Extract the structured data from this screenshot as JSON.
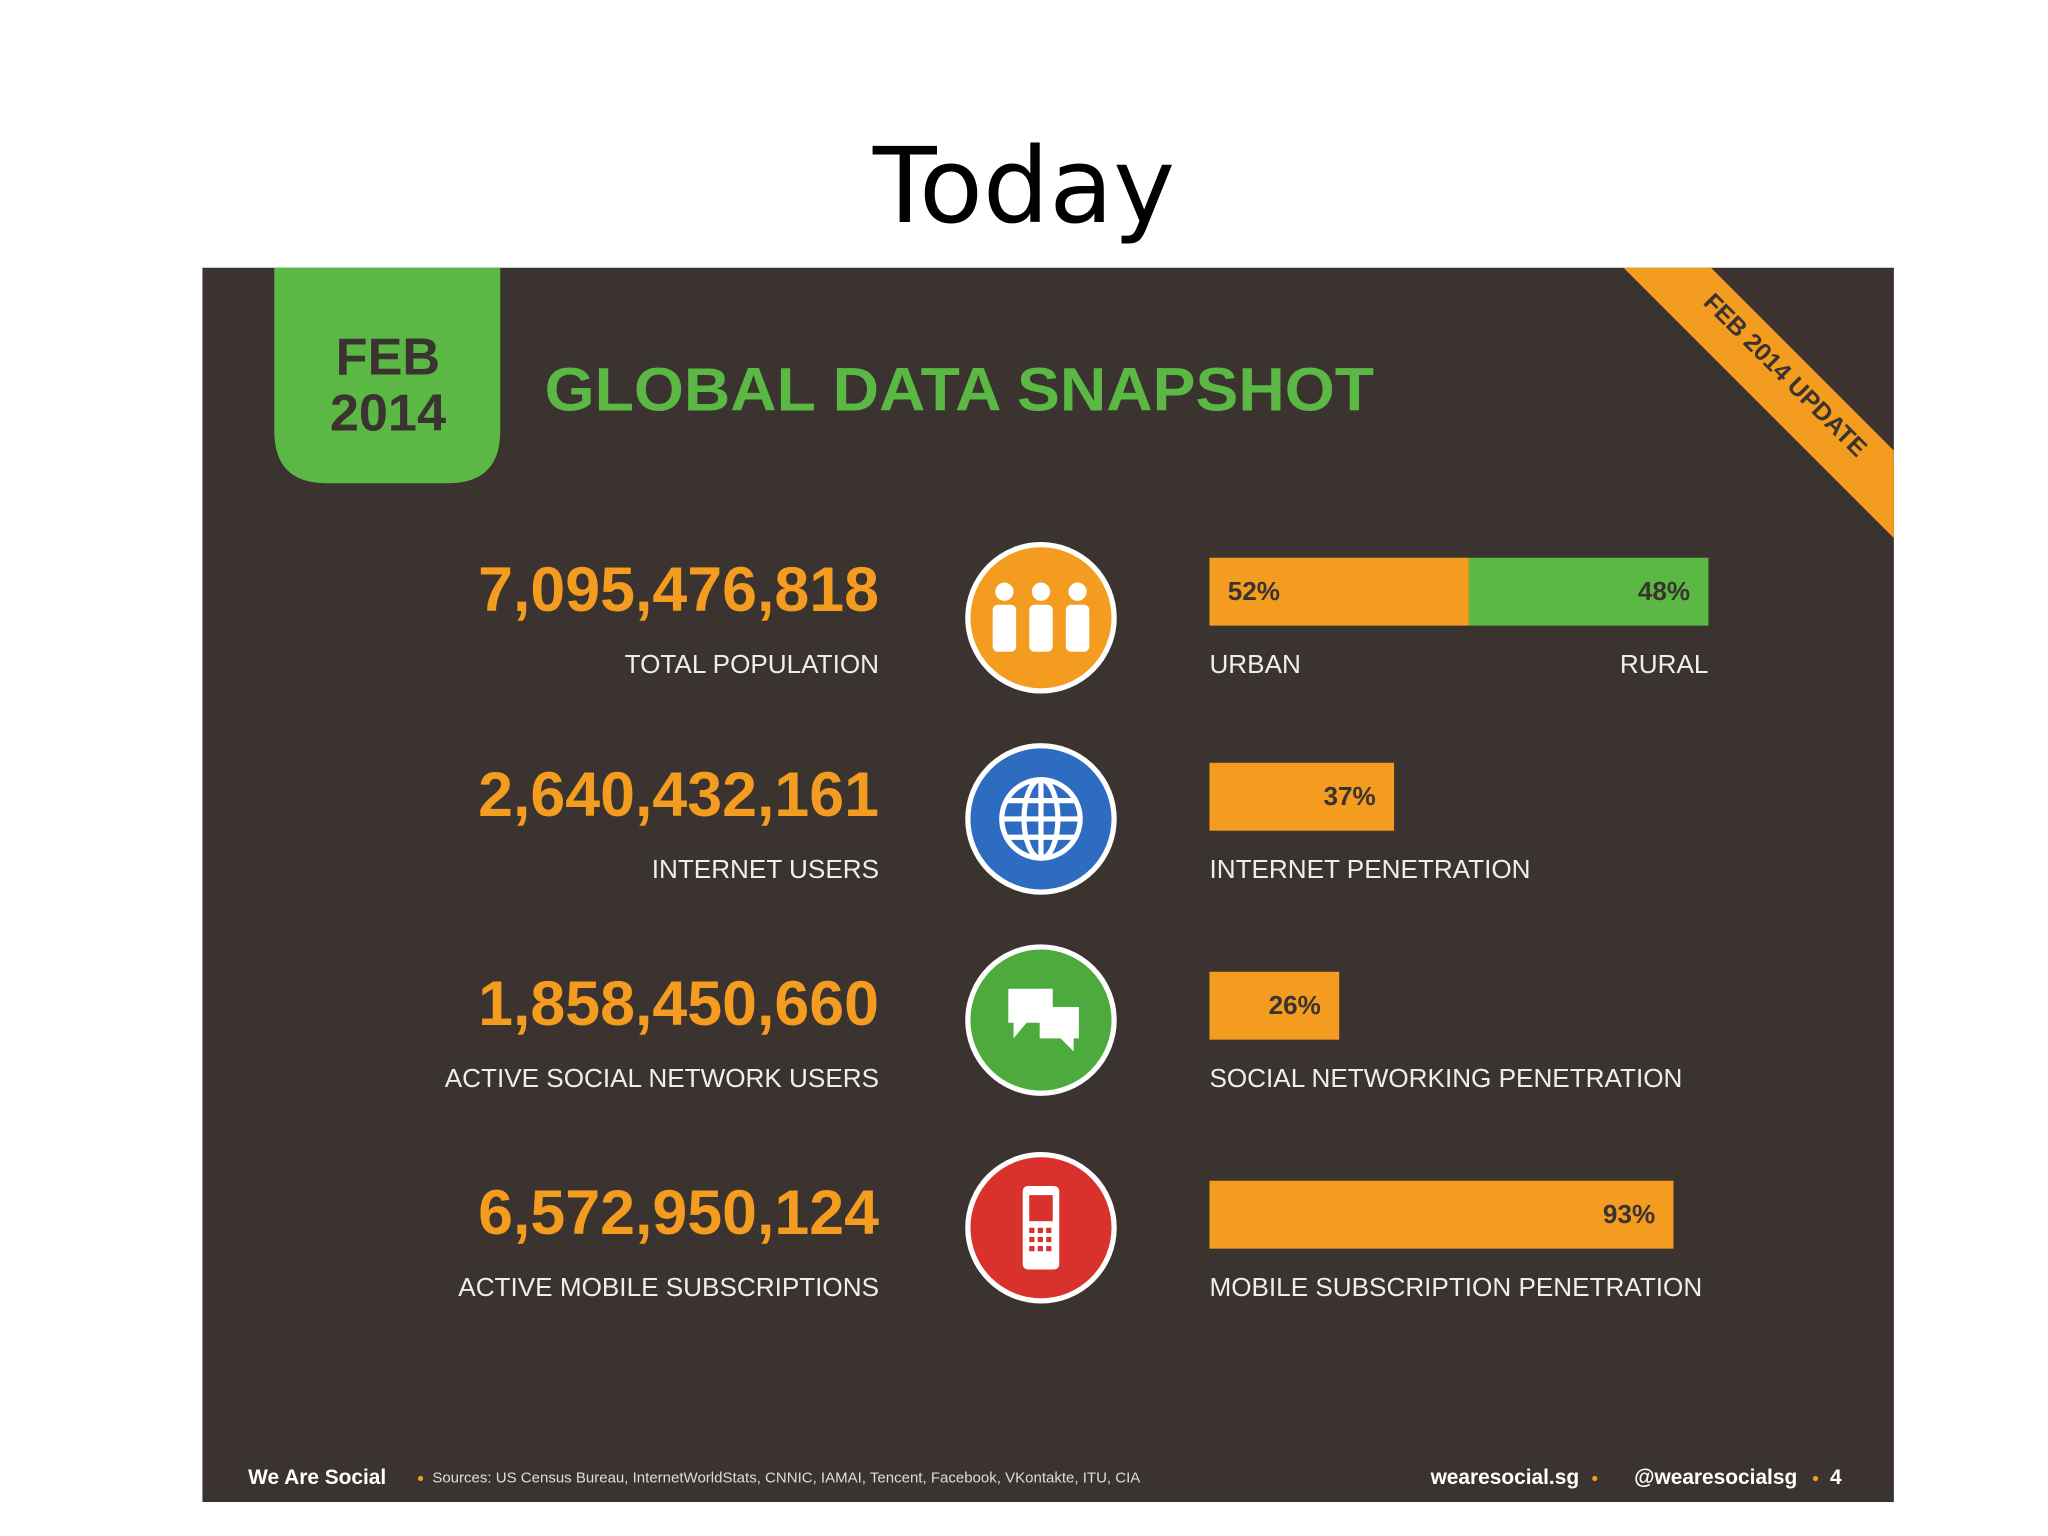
{
  "title": "Today",
  "infographic": {
    "badge": {
      "month": "FEB",
      "year": "2014"
    },
    "heading": "GLOBAL DATA SNAPSHOT",
    "ribbon": "FEB 2014 UPDATE",
    "rows": [
      {
        "number": "7,095,476,818",
        "label": "TOTAL POPULATION",
        "bars": [
          {
            "value": 52,
            "label": "52%",
            "name": "URBAN"
          },
          {
            "value": 48,
            "label": "48%",
            "name": "RURAL"
          }
        ]
      },
      {
        "number": "2,640,432,161",
        "label": "INTERNET USERS",
        "bars": [
          {
            "value": 37,
            "label": "37%"
          }
        ],
        "caption": "INTERNET PENETRATION"
      },
      {
        "number": "1,858,450,660",
        "label": "ACTIVE SOCIAL NETWORK USERS",
        "bars": [
          {
            "value": 26,
            "label": "26%"
          }
        ],
        "caption": "SOCIAL NETWORKING PENETRATION"
      },
      {
        "number": "6,572,950,124",
        "label": "ACTIVE MOBILE SUBSCRIPTIONS",
        "bars": [
          {
            "value": 93,
            "label": "93%"
          }
        ],
        "caption": "MOBILE SUBSCRIPTION PENETRATION"
      }
    ],
    "footer": {
      "brand": "We Are Social",
      "sources": "Sources: US Census Bureau, InternetWorldStats, CNNIC, IAMAI, Tencent, Facebook, VKontakte, ITU, CIA",
      "site": "wearesocial.sg",
      "handle": "@wearesocialsg",
      "page": "4"
    }
  }
}
